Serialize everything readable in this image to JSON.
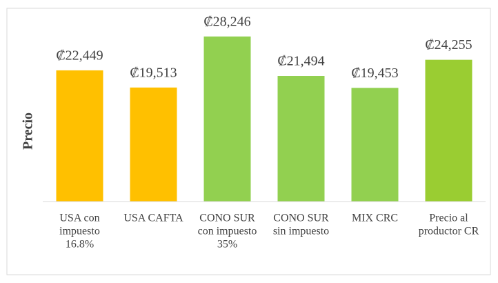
{
  "chart_data": {
    "type": "bar",
    "y_label": "Precio",
    "categories": [
      [
        "USA con",
        "impuesto",
        "16.8%"
      ],
      [
        "USA CAFTA"
      ],
      [
        "CONO SUR",
        "con impuesto",
        "35%"
      ],
      [
        "CONO SUR",
        "sin impuesto"
      ],
      [
        "MIX CRC"
      ],
      [
        "Precio al",
        "productor CR"
      ]
    ],
    "values": [
      22449,
      19513,
      28246,
      21494,
      19453,
      24255
    ],
    "value_labels": [
      "₡22,449",
      "₡19,513",
      "₡28,246",
      "₡21,494",
      "₡19,453",
      "₡24,255"
    ],
    "colors": [
      "#ffc000",
      "#ffc000",
      "#92d050",
      "#92d050",
      "#92d050",
      "#9acd32"
    ],
    "ylim": [
      0,
      30000
    ],
    "grid": false
  }
}
